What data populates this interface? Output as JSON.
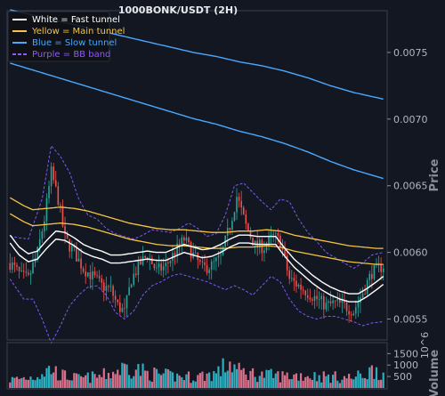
{
  "chart_data": [
    {
      "type": "candlestick",
      "title": "1000BONK/USDT (2H)",
      "ylabel": "Price",
      "ylim": [
        0.00535,
        0.0078
      ],
      "yticks": [
        0.0055,
        0.006,
        0.0065,
        0.007,
        0.0075
      ],
      "ytick_labels": [
        "0.0055",
        "0.0060",
        "0.0065",
        "0.0070",
        "0.0075"
      ],
      "grid": false,
      "legend": {
        "placement": "top-left",
        "entries": [
          {
            "label": "White = Fast tunnel",
            "color": "#ffffff",
            "style": "solid"
          },
          {
            "label": "Yellow = Main tunnel",
            "color": "#f5c542",
            "style": "solid"
          },
          {
            "label": "Blue = Slow tunnel",
            "color": "#4aa8ff",
            "style": "solid"
          },
          {
            "label": "Purple = BB band",
            "color": "#8b5cf6",
            "style": "dashed"
          }
        ]
      },
      "colors": {
        "up": "#26a69a",
        "down": "#ef5350",
        "fast": "#ffffff",
        "main": "#f5c542",
        "slow": "#4aa8ff",
        "bb": "#7c5cf0"
      },
      "anchors": {
        "close": [
          [
            0,
            0.00592
          ],
          [
            5,
            0.00582
          ],
          [
            8,
            0.0058
          ],
          [
            12,
            0.006
          ],
          [
            15,
            0.00625
          ],
          [
            18,
            0.0066
          ],
          [
            21,
            0.0064
          ],
          [
            24,
            0.0061
          ],
          [
            28,
            0.006
          ],
          [
            32,
            0.00588
          ],
          [
            36,
            0.00582
          ],
          [
            40,
            0.00575
          ],
          [
            44,
            0.00572
          ],
          [
            47,
            0.0056
          ],
          [
            50,
            0.00555
          ],
          [
            53,
            0.0058
          ],
          [
            57,
            0.00592
          ],
          [
            60,
            0.00598
          ],
          [
            64,
            0.00586
          ],
          [
            68,
            0.0059
          ],
          [
            72,
            0.006
          ],
          [
            76,
            0.0061
          ],
          [
            80,
            0.00598
          ],
          [
            84,
            0.00588
          ],
          [
            88,
            0.0059
          ],
          [
            92,
            0.00596
          ],
          [
            96,
            0.0062
          ],
          [
            99,
            0.00642
          ],
          [
            103,
            0.0062
          ],
          [
            107,
            0.00605
          ],
          [
            111,
            0.00604
          ],
          [
            115,
            0.00612
          ],
          [
            118,
            0.00608
          ],
          [
            122,
            0.0058
          ],
          [
            126,
            0.00575
          ],
          [
            130,
            0.0057
          ],
          [
            134,
            0.00565
          ],
          [
            138,
            0.0056
          ],
          [
            142,
            0.00562
          ],
          [
            146,
            0.0056
          ],
          [
            150,
            0.00556
          ],
          [
            154,
            0.0057
          ],
          [
            158,
            0.00585
          ],
          [
            161,
            0.00588
          ],
          [
            163,
            0.0059
          ]
        ],
        "fast": [
          [
            0,
            0.0061
          ],
          [
            4,
            0.00601
          ],
          [
            8,
            0.00596
          ],
          [
            12,
            0.00598
          ],
          [
            16,
            0.00606
          ],
          [
            20,
            0.00613
          ],
          [
            24,
            0.00612
          ],
          [
            28,
            0.00608
          ],
          [
            32,
            0.00603
          ],
          [
            36,
            0.006
          ],
          [
            40,
            0.00598
          ],
          [
            44,
            0.00595
          ],
          [
            48,
            0.00595
          ],
          [
            52,
            0.00596
          ],
          [
            56,
            0.00597
          ],
          [
            60,
            0.00598
          ],
          [
            64,
            0.00597
          ],
          [
            68,
            0.00597
          ],
          [
            72,
            0.006
          ],
          [
            76,
            0.00603
          ],
          [
            80,
            0.00601
          ],
          [
            84,
            0.00599
          ],
          [
            88,
            0.006
          ],
          [
            92,
            0.00603
          ],
          [
            96,
            0.00607
          ],
          [
            100,
            0.0061
          ],
          [
            104,
            0.0061
          ],
          [
            108,
            0.00609
          ],
          [
            112,
            0.00609
          ],
          [
            116,
            0.00609
          ],
          [
            120,
            0.006
          ],
          [
            124,
            0.00592
          ],
          [
            128,
            0.00586
          ],
          [
            132,
            0.0058
          ],
          [
            136,
            0.00575
          ],
          [
            140,
            0.00571
          ],
          [
            144,
            0.00568
          ],
          [
            148,
            0.00566
          ],
          [
            152,
            0.00566
          ],
          [
            156,
            0.0057
          ],
          [
            160,
            0.00575
          ],
          [
            163,
            0.00579
          ]
        ],
        "main": [
          [
            0,
            0.00635
          ],
          [
            6,
            0.00629
          ],
          [
            10,
            0.00626
          ],
          [
            16,
            0.00627
          ],
          [
            22,
            0.00628
          ],
          [
            28,
            0.00627
          ],
          [
            34,
            0.00625
          ],
          [
            40,
            0.00622
          ],
          [
            46,
            0.00619
          ],
          [
            52,
            0.00616
          ],
          [
            58,
            0.00614
          ],
          [
            64,
            0.00612
          ],
          [
            70,
            0.00611
          ],
          [
            76,
            0.00611
          ],
          [
            82,
            0.0061
          ],
          [
            88,
            0.00609
          ],
          [
            94,
            0.00609
          ],
          [
            100,
            0.0061
          ],
          [
            106,
            0.0061
          ],
          [
            112,
            0.00611
          ],
          [
            118,
            0.0061
          ],
          [
            124,
            0.00607
          ],
          [
            130,
            0.00605
          ],
          [
            136,
            0.00603
          ],
          [
            142,
            0.00601
          ],
          [
            148,
            0.00599
          ],
          [
            154,
            0.00598
          ],
          [
            160,
            0.00597
          ],
          [
            163,
            0.00597
          ]
        ],
        "slow": [
          [
            0,
            0.00782
          ],
          [
            10,
            0.00778
          ],
          [
            20,
            0.00774
          ],
          [
            30,
            0.0077
          ],
          [
            40,
            0.00766
          ],
          [
            50,
            0.00762
          ],
          [
            60,
            0.00758
          ],
          [
            70,
            0.00754
          ],
          [
            80,
            0.0075
          ],
          [
            90,
            0.00747
          ],
          [
            100,
            0.00743
          ],
          [
            110,
            0.0074
          ],
          [
            120,
            0.00736
          ],
          [
            130,
            0.00731
          ],
          [
            140,
            0.00725
          ],
          [
            150,
            0.0072
          ],
          [
            163,
            0.00715
          ]
        ],
        "bb_upper": [
          [
            0,
            0.00612
          ],
          [
            8,
            0.0061
          ],
          [
            14,
            0.0064
          ],
          [
            18,
            0.0068
          ],
          [
            22,
            0.00672
          ],
          [
            26,
            0.0066
          ],
          [
            30,
            0.0064
          ],
          [
            34,
            0.00628
          ],
          [
            38,
            0.00625
          ],
          [
            42,
            0.00618
          ],
          [
            46,
            0.00614
          ],
          [
            50,
            0.00612
          ],
          [
            54,
            0.0061
          ],
          [
            58,
            0.00613
          ],
          [
            62,
            0.00617
          ],
          [
            66,
            0.00616
          ],
          [
            70,
            0.00615
          ],
          [
            74,
            0.00618
          ],
          [
            78,
            0.00622
          ],
          [
            82,
            0.00618
          ],
          [
            86,
            0.00612
          ],
          [
            90,
            0.00614
          ],
          [
            94,
            0.00628
          ],
          [
            98,
            0.0065
          ],
          [
            102,
            0.00652
          ],
          [
            106,
            0.00645
          ],
          [
            110,
            0.00638
          ],
          [
            114,
            0.00632
          ],
          [
            118,
            0.0064
          ],
          [
            122,
            0.00638
          ],
          [
            126,
            0.00625
          ],
          [
            130,
            0.00615
          ],
          [
            134,
            0.00608
          ],
          [
            138,
            0.006
          ],
          [
            142,
            0.00596
          ],
          [
            146,
            0.00592
          ],
          [
            150,
            0.00588
          ],
          [
            154,
            0.00592
          ],
          [
            158,
            0.00598
          ],
          [
            163,
            0.006
          ]
        ],
        "bb_lower": [
          [
            0,
            0.0058
          ],
          [
            6,
            0.00565
          ],
          [
            10,
            0.00565
          ],
          [
            14,
            0.0055
          ],
          [
            18,
            0.00532
          ],
          [
            22,
            0.00545
          ],
          [
            26,
            0.0056
          ],
          [
            30,
            0.00568
          ],
          [
            34,
            0.00574
          ],
          [
            38,
            0.00575
          ],
          [
            42,
            0.00568
          ],
          [
            46,
            0.00555
          ],
          [
            50,
            0.0055
          ],
          [
            54,
            0.00556
          ],
          [
            58,
            0.00568
          ],
          [
            62,
            0.00575
          ],
          [
            66,
            0.00578
          ],
          [
            70,
            0.00582
          ],
          [
            74,
            0.00584
          ],
          [
            78,
            0.00582
          ],
          [
            82,
            0.0058
          ],
          [
            86,
            0.00578
          ],
          [
            90,
            0.00575
          ],
          [
            94,
            0.00572
          ],
          [
            98,
            0.00575
          ],
          [
            102,
            0.00572
          ],
          [
            106,
            0.00568
          ],
          [
            110,
            0.00575
          ],
          [
            114,
            0.00582
          ],
          [
            118,
            0.00578
          ],
          [
            122,
            0.00565
          ],
          [
            126,
            0.00556
          ],
          [
            130,
            0.00552
          ],
          [
            134,
            0.0055
          ],
          [
            138,
            0.00552
          ],
          [
            142,
            0.00552
          ],
          [
            146,
            0.0055
          ],
          [
            150,
            0.00548
          ],
          [
            154,
            0.00545
          ],
          [
            158,
            0.00547
          ],
          [
            163,
            0.00548
          ]
        ]
      },
      "candle_count": 164,
      "seed": 7
    },
    {
      "type": "bar",
      "ylabel": "Volume",
      "multiplier": "10^6",
      "ylim": [
        0,
        1900
      ],
      "yticks": [
        500,
        1000,
        1500
      ],
      "ytick_labels": [
        "500",
        "1000",
        "1500"
      ],
      "volume_anchors": [
        [
          0,
          450
        ],
        [
          10,
          600
        ],
        [
          18,
          1050
        ],
        [
          22,
          700
        ],
        [
          30,
          520
        ],
        [
          40,
          650
        ],
        [
          46,
          900
        ],
        [
          52,
          1200
        ],
        [
          60,
          800
        ],
        [
          70,
          650
        ],
        [
          80,
          600
        ],
        [
          90,
          800
        ],
        [
          96,
          1350
        ],
        [
          100,
          900
        ],
        [
          110,
          700
        ],
        [
          120,
          650
        ],
        [
          126,
          700
        ],
        [
          134,
          650
        ],
        [
          140,
          600
        ],
        [
          150,
          550
        ],
        [
          156,
          800
        ],
        [
          160,
          1100
        ],
        [
          163,
          700
        ]
      ]
    }
  ]
}
